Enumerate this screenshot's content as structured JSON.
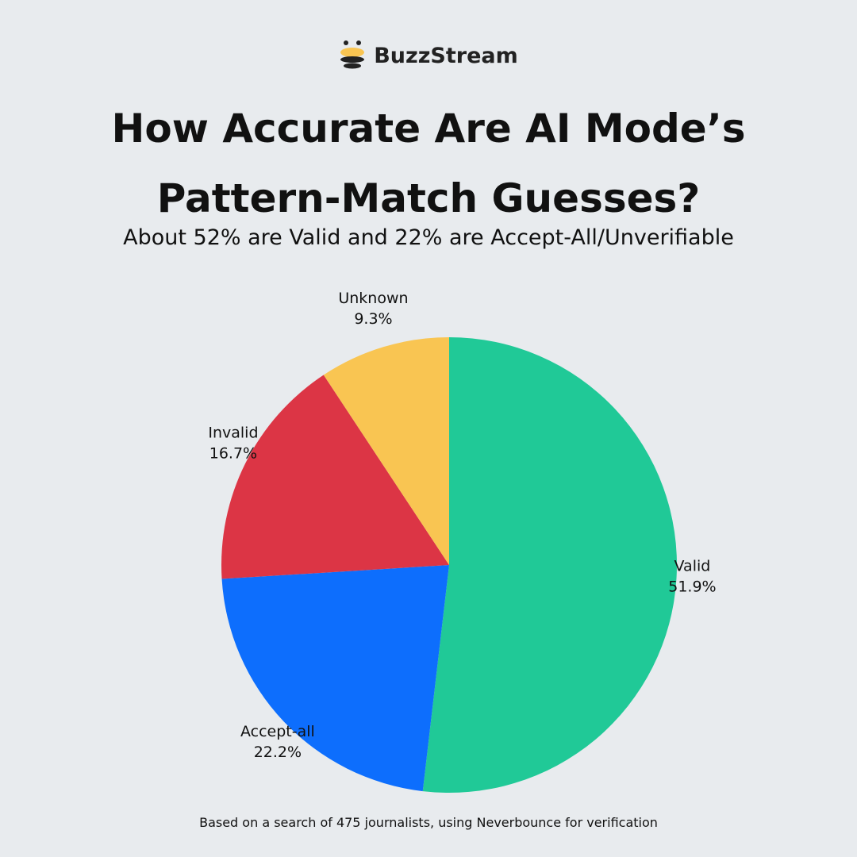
{
  "brand": "BuzzStream",
  "chart_data": {
    "type": "pie",
    "title": "How Accurate Are AI Mode’s Pattern-Match Guesses?",
    "subtitle": "About 52% are Valid and 22% are Accept-All/Unverifiable",
    "caption": "Based on a search of 475 journalists, using Neverbounce for verification",
    "categories": [
      "Valid",
      "Accept-all",
      "Invalid",
      "Unknown"
    ],
    "values": [
      51.9,
      22.2,
      16.7,
      9.3
    ],
    "value_labels": [
      "51.9%",
      "22.2%",
      "16.7%",
      "9.3%"
    ],
    "colors": [
      "#20c997",
      "#0d6efd",
      "#dc3545",
      "#f9c552"
    ]
  }
}
